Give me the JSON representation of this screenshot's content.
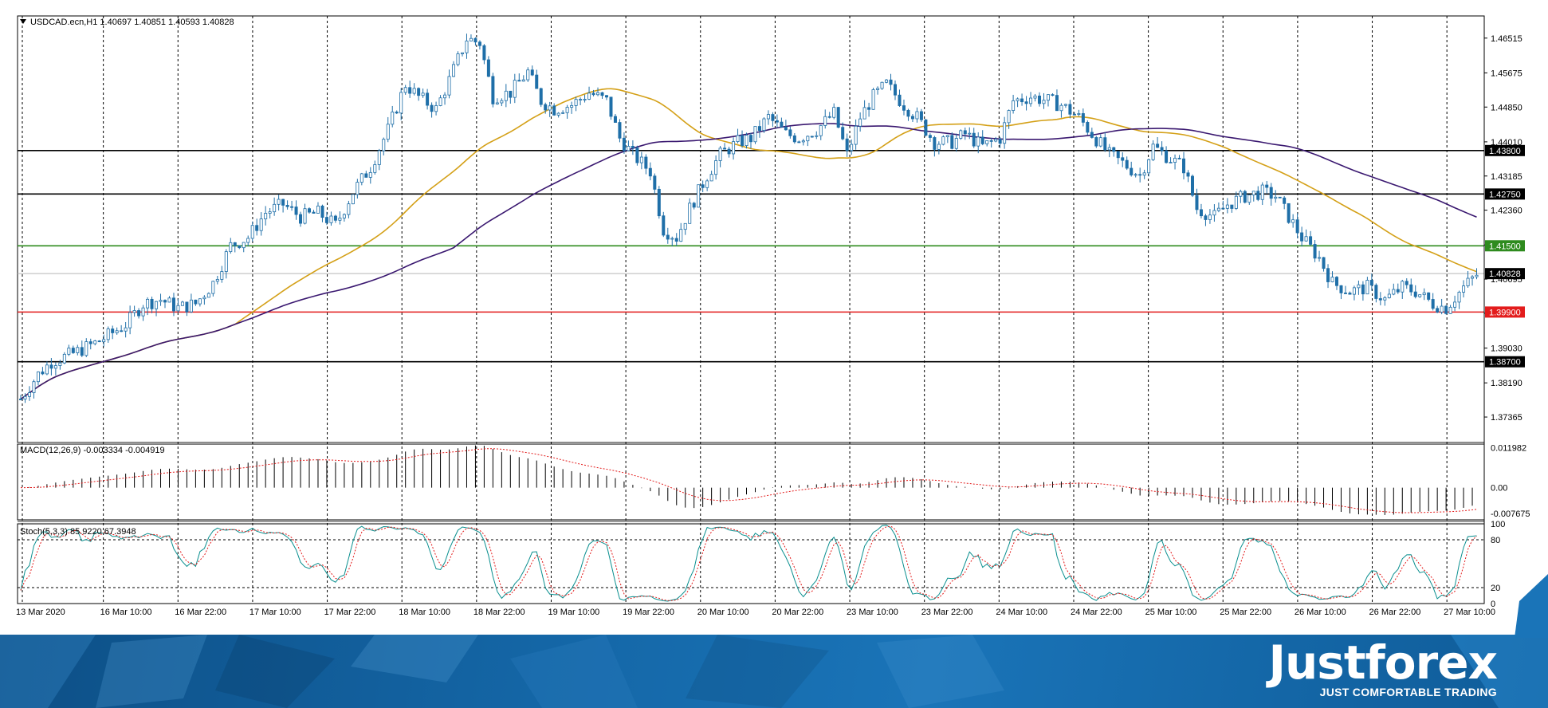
{
  "chart_data": {
    "type": "candlestick",
    "symbol_header": {
      "symbol": "USDCAD.ecn,H1",
      "ohlc": "1.40697 1.40851 1.40593 1.40828"
    },
    "price_axis": {
      "ylim": [
        1.3675,
        1.4705
      ],
      "ticks": [
        "1.46515",
        "1.45675",
        "1.44850",
        "1.44010",
        "1.43185",
        "1.42360",
        "1.41520",
        "1.40695",
        "1.39870",
        "1.39030",
        "1.38190",
        "1.37365"
      ],
      "current_price": "1.40828"
    },
    "time_axis": {
      "labels": [
        "13 Mar 2020",
        "16 Mar 10:00",
        "16 Mar 22:00",
        "17 Mar 10:00",
        "17 Mar 22:00",
        "18 Mar 10:00",
        "18 Mar 22:00",
        "19 Mar 10:00",
        "19 Mar 22:00",
        "20 Mar 10:00",
        "20 Mar 22:00",
        "23 Mar 10:00",
        "23 Mar 22:00",
        "24 Mar 10:00",
        "24 Mar 22:00",
        "25 Mar 10:00",
        "25 Mar 22:00",
        "26 Mar 10:00",
        "26 Mar 22:00",
        "27 Mar 10:00"
      ]
    },
    "levels": [
      {
        "label": "1.43800",
        "value": 1.438,
        "color": "#000000"
      },
      {
        "label": "1.42750",
        "value": 1.4275,
        "color": "#000000"
      },
      {
        "label": "1.41500",
        "value": 1.415,
        "color": "#2e8b1e"
      },
      {
        "label": "1.39900",
        "value": 1.399,
        "color": "#e31c1c"
      },
      {
        "label": "1.38700",
        "value": 1.387,
        "color": "#000000"
      }
    ],
    "close_path": [
      [
        0,
        1.378
      ],
      [
        4,
        1.384
      ],
      [
        7,
        1.387
      ],
      [
        12,
        1.389
      ],
      [
        18,
        1.392
      ],
      [
        24,
        1.396
      ],
      [
        28,
        1.401
      ],
      [
        32,
        1.402
      ],
      [
        36,
        1.4
      ],
      [
        40,
        1.401
      ],
      [
        44,
        1.406
      ],
      [
        48,
        1.415
      ],
      [
        52,
        1.417
      ],
      [
        56,
        1.423
      ],
      [
        60,
        1.425
      ],
      [
        64,
        1.422
      ],
      [
        68,
        1.423
      ],
      [
        72,
        1.42
      ],
      [
        76,
        1.428
      ],
      [
        80,
        1.434
      ],
      [
        84,
        1.443
      ],
      [
        88,
        1.454
      ],
      [
        91,
        1.451
      ],
      [
        95,
        1.448
      ],
      [
        98,
        1.455
      ],
      [
        102,
        1.465
      ],
      [
        105,
        1.464
      ],
      [
        108,
        1.451
      ],
      [
        112,
        1.452
      ],
      [
        116,
        1.457
      ],
      [
        119,
        1.45
      ],
      [
        122,
        1.448
      ],
      [
        126,
        1.449
      ],
      [
        130,
        1.452
      ],
      [
        134,
        1.45
      ],
      [
        137,
        1.441
      ],
      [
        140,
        1.437
      ],
      [
        144,
        1.433
      ],
      [
        147,
        1.419
      ],
      [
        150,
        1.417
      ],
      [
        153,
        1.424
      ],
      [
        157,
        1.432
      ],
      [
        160,
        1.437
      ],
      [
        164,
        1.44
      ],
      [
        167,
        1.441
      ],
      [
        171,
        1.446
      ],
      [
        175,
        1.442
      ],
      [
        178,
        1.441
      ],
      [
        182,
        1.443
      ],
      [
        186,
        1.447
      ],
      [
        189,
        1.437
      ],
      [
        192,
        1.446
      ],
      [
        195,
        1.451
      ],
      [
        198,
        1.454
      ],
      [
        202,
        1.449
      ],
      [
        205,
        1.446
      ],
      [
        209,
        1.44
      ],
      [
        213,
        1.44
      ],
      [
        216,
        1.442
      ],
      [
        220,
        1.439
      ],
      [
        224,
        1.441
      ],
      [
        227,
        1.45
      ],
      [
        231,
        1.451
      ],
      [
        235,
        1.45
      ],
      [
        238,
        1.449
      ],
      [
        242,
        1.446
      ],
      [
        245,
        1.442
      ],
      [
        249,
        1.437
      ],
      [
        252,
        1.435
      ],
      [
        256,
        1.432
      ],
      [
        259,
        1.439
      ],
      [
        263,
        1.436
      ],
      [
        266,
        1.434
      ],
      [
        269,
        1.424
      ],
      [
        273,
        1.422
      ],
      [
        276,
        1.425
      ],
      [
        280,
        1.427
      ],
      [
        284,
        1.428
      ],
      [
        287,
        1.427
      ],
      [
        290,
        1.422
      ],
      [
        293,
        1.417
      ],
      [
        297,
        1.412
      ],
      [
        300,
        1.406
      ],
      [
        304,
        1.404
      ],
      [
        308,
        1.405
      ],
      [
        312,
        1.402
      ],
      [
        316,
        1.405
      ],
      [
        319,
        1.404
      ],
      [
        323,
        1.401
      ],
      [
        326,
        1.4
      ],
      [
        330,
        1.405
      ],
      [
        333,
        1.408
      ]
    ],
    "series": [
      {
        "name": "",
        "color": "#d4a017",
        "ma_period": 50
      },
      {
        "name": "",
        "color": "#3a1870",
        "ma_period": 100
      }
    ],
    "macd": {
      "label": "MACD(12,26,9) -0.003334 -0.004919",
      "ticks": [
        "0.011982",
        "0.00",
        "-0.007675"
      ],
      "ylim": [
        -0.0096,
        0.013
      ],
      "signal_color": "#e31c1c"
    },
    "stochastic": {
      "label": "Stoch(5,3,3) 85.9220 67.3948",
      "ticks": [
        "100",
        "80",
        "20",
        "0"
      ],
      "levels": [
        80,
        20
      ],
      "main_color": "#0a8f8f",
      "signal_color": "#e31c1c"
    },
    "grid": true
  },
  "branding": {
    "name": "Justforex",
    "tagline": "JUST COMFORTABLE TRADING"
  }
}
